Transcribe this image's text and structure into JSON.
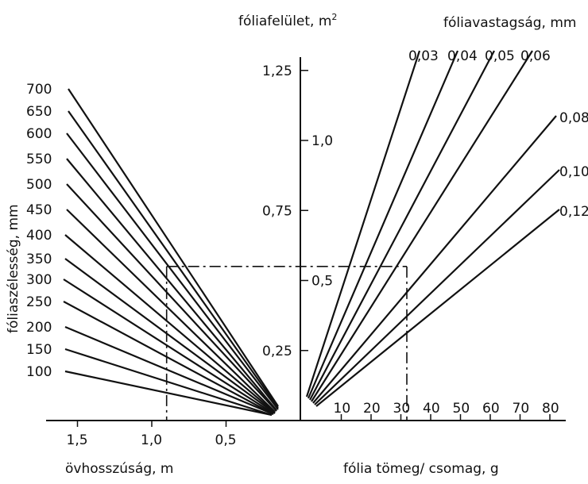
{
  "titles": {
    "top_center": "fóliafelület, m",
    "top_center_sup": "2",
    "top_right": "fóliavastagság, mm",
    "left_vertical": "fóliaszélesség, mm",
    "bottom_left": "övhosszúság, m",
    "bottom_right": "fólia tömeg/ csomag,  g"
  },
  "center_axis_ticks": [
    {
      "label": "1,25",
      "value": 1.25
    },
    {
      "label": "1,0",
      "value": 1.0
    },
    {
      "label": "0,75",
      "value": 0.75
    },
    {
      "label": "0,5",
      "value": 0.5
    },
    {
      "label": "0,25",
      "value": 0.25
    }
  ],
  "left_axis_ticks": [
    {
      "label": "1,5",
      "value": 1.5
    },
    {
      "label": "1,0",
      "value": 1.0
    },
    {
      "label": "0,5",
      "value": 0.5
    }
  ],
  "right_axis_ticks": [
    {
      "label": "10",
      "value": 10
    },
    {
      "label": "20",
      "value": 20
    },
    {
      "label": "30",
      "value": 30
    },
    {
      "label": "40",
      "value": 40
    },
    {
      "label": "50",
      "value": 50
    },
    {
      "label": "60",
      "value": 60
    },
    {
      "label": "70",
      "value": 70
    },
    {
      "label": "80",
      "value": 80
    }
  ],
  "width_lines": [
    {
      "label": "700"
    },
    {
      "label": "650"
    },
    {
      "label": "600"
    },
    {
      "label": "550"
    },
    {
      "label": "500"
    },
    {
      "label": "450"
    },
    {
      "label": "400"
    },
    {
      "label": "350"
    },
    {
      "label": "300"
    },
    {
      "label": "250"
    },
    {
      "label": "200"
    },
    {
      "label": "150"
    },
    {
      "label": "100"
    }
  ],
  "thickness_lines": [
    {
      "label": "0,03"
    },
    {
      "label": "0,04"
    },
    {
      "label": "0,05"
    },
    {
      "label": "0,06"
    },
    {
      "label": "0,08"
    },
    {
      "label": "0,10"
    },
    {
      "label": "0,12"
    }
  ],
  "example": {
    "belt_length_m": 0.9,
    "area_m2": 0.55,
    "mass_g": 32
  }
}
